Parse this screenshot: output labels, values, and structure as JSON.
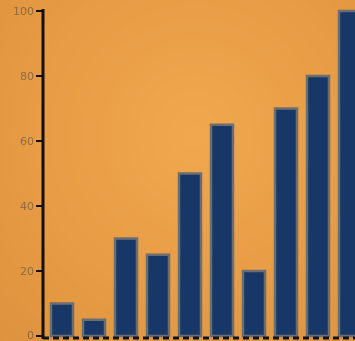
{
  "chart_data": {
    "type": "bar",
    "title": "",
    "xlabel": "",
    "ylabel": "",
    "categories": [
      "",
      "",
      "",
      "",
      "",
      "",
      "",
      "",
      "",
      ""
    ],
    "values": [
      10,
      5,
      30,
      25,
      50,
      65,
      20,
      70,
      80,
      100
    ],
    "ylim": [
      0,
      100
    ],
    "yticks": [
      "0",
      "20",
      "40",
      "60",
      "80",
      "100"
    ],
    "grid": false,
    "legend": "none",
    "colors": {
      "background": "#e9a04a",
      "bar_fill": "#173866",
      "bar_stroke": "#6b6d70",
      "axis": "#111111",
      "tick_text": "#8a6a43"
    }
  }
}
